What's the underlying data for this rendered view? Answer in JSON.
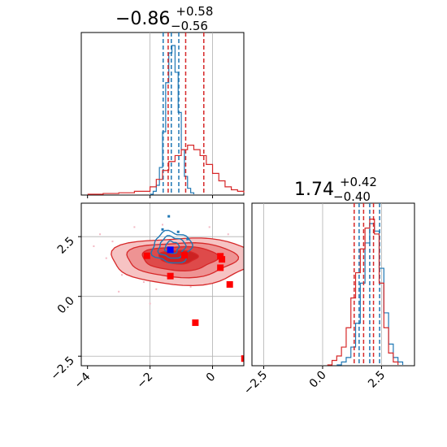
{
  "chart_data": [
    {
      "panel": "hist-x",
      "type": "step-histogram",
      "title": {
        "main": "−0.86",
        "sup": "+0.58",
        "sub": "−0.56"
      },
      "xlim": [
        -4.2,
        1.0
      ],
      "x_tick_labels_shown": false,
      "grid": true,
      "series": [
        {
          "name": "",
          "color": "#1f77b4",
          "style": "step",
          "points": [
            [
              -2.0,
              0
            ],
            [
              -1.9,
              0.02
            ],
            [
              -1.8,
              0.06
            ],
            [
              -1.7,
              0.18
            ],
            [
              -1.6,
              0.42
            ],
            [
              -1.5,
              0.75
            ],
            [
              -1.4,
              0.95
            ],
            [
              -1.3,
              1.0
            ],
            [
              -1.2,
              0.82
            ],
            [
              -1.1,
              0.55
            ],
            [
              -1.0,
              0.3
            ],
            [
              -0.9,
              0.12
            ],
            [
              -0.8,
              0.04
            ],
            [
              -0.7,
              0.01
            ],
            [
              -0.6,
              0
            ]
          ],
          "quantiles": [
            -1.58,
            -1.32,
            -1.08
          ]
        },
        {
          "name": "",
          "color": "#d62728",
          "style": "step",
          "points": [
            [
              -4.0,
              0
            ],
            [
              -3.5,
              0.005
            ],
            [
              -3.0,
              0.01
            ],
            [
              -2.5,
              0.02
            ],
            [
              -2.0,
              0.05
            ],
            [
              -1.8,
              0.1
            ],
            [
              -1.6,
              0.16
            ],
            [
              -1.4,
              0.22
            ],
            [
              -1.2,
              0.26
            ],
            [
              -1.0,
              0.3
            ],
            [
              -0.8,
              0.33
            ],
            [
              -0.6,
              0.3
            ],
            [
              -0.4,
              0.26
            ],
            [
              -0.2,
              0.2
            ],
            [
              0.0,
              0.14
            ],
            [
              0.2,
              0.09
            ],
            [
              0.4,
              0.05
            ],
            [
              0.6,
              0.03
            ],
            [
              0.8,
              0.02
            ],
            [
              1.0,
              0.01
            ]
          ],
          "quantiles": [
            -1.42,
            -0.86,
            -0.28
          ]
        }
      ]
    },
    {
      "panel": "hist-y",
      "type": "step-histogram",
      "title": {
        "main": "1.74",
        "sup": "+0.42",
        "sub": "−0.40"
      },
      "xlim": [
        -3.0,
        3.9
      ],
      "x_ticks": [
        -2.5,
        0.0,
        2.5
      ],
      "x_tick_labels": [
        "−2.5",
        "0.0",
        "2.5"
      ],
      "grid": true,
      "series": [
        {
          "name": "",
          "color": "#1f77b4",
          "style": "step",
          "points": [
            [
              0.6,
              0
            ],
            [
              0.8,
              0.02
            ],
            [
              1.0,
              0.05
            ],
            [
              1.2,
              0.12
            ],
            [
              1.4,
              0.28
            ],
            [
              1.6,
              0.55
            ],
            [
              1.8,
              0.82
            ],
            [
              2.0,
              0.95
            ],
            [
              2.2,
              0.9
            ],
            [
              2.4,
              0.65
            ],
            [
              2.6,
              0.35
            ],
            [
              2.8,
              0.14
            ],
            [
              3.0,
              0.05
            ],
            [
              3.2,
              0.02
            ],
            [
              3.4,
              0
            ]
          ],
          "quantiles": [
            1.55,
            2.0,
            2.42
          ]
        },
        {
          "name": "",
          "color": "#d62728",
          "style": "step",
          "points": [
            [
              0.2,
              0
            ],
            [
              0.4,
              0.03
            ],
            [
              0.6,
              0.06
            ],
            [
              0.8,
              0.12
            ],
            [
              1.0,
              0.25
            ],
            [
              1.2,
              0.45
            ],
            [
              1.4,
              0.62
            ],
            [
              1.6,
              0.78
            ],
            [
              1.8,
              0.92
            ],
            [
              2.0,
              0.98
            ],
            [
              2.2,
              0.88
            ],
            [
              2.4,
              0.55
            ],
            [
              2.6,
              0.25
            ],
            [
              2.8,
              0.08
            ],
            [
              3.0,
              0.02
            ],
            [
              3.2,
              0
            ]
          ],
          "quantiles": [
            1.34,
            1.74,
            2.16
          ]
        }
      ]
    },
    {
      "panel": "corner-2d",
      "type": "contour-scatter",
      "xlim": [
        -4.2,
        1.0
      ],
      "ylim": [
        -2.9,
        3.9
      ],
      "x_ticks": [
        -4,
        -2,
        0
      ],
      "x_tick_labels": [
        "−4",
        "−2",
        "0"
      ],
      "y_ticks": [
        -2.5,
        0.0,
        2.5
      ],
      "y_tick_labels": [
        "−2.5",
        "0.0",
        "2.5"
      ],
      "grid": true,
      "red_contours": [
        {
          "cx": -0.95,
          "cy": 1.5,
          "rx": 2.3,
          "ry": 0.98,
          "fill": "#f6c3c3",
          "stroke": "#d62728"
        },
        {
          "cx": -1.0,
          "cy": 1.55,
          "rx": 1.75,
          "ry": 0.72,
          "fill": "#ee9393",
          "stroke": "#d62728"
        },
        {
          "cx": -1.05,
          "cy": 1.6,
          "rx": 1.2,
          "ry": 0.5,
          "fill": "#de4a4a",
          "stroke": "#d62728"
        },
        {
          "cx": -1.1,
          "cy": 1.65,
          "rx": 0.62,
          "ry": 0.28,
          "fill": "#cc2222",
          "stroke": "#d62728"
        }
      ],
      "blue_contours": [
        {
          "cx": -1.3,
          "cy": 2.05,
          "rx": 0.62,
          "ry": 0.65,
          "stroke": "#1f77b4"
        },
        {
          "cx": -1.3,
          "cy": 2.05,
          "rx": 0.42,
          "ry": 0.45,
          "stroke": "#1f77b4"
        },
        {
          "cx": -1.3,
          "cy": 2.05,
          "rx": 0.22,
          "ry": 0.25,
          "stroke": "#1f77b4"
        }
      ],
      "red_points": [
        [
          -2.1,
          1.7
        ],
        [
          -1.35,
          0.85
        ],
        [
          -0.9,
          1.72
        ],
        [
          0.25,
          1.68
        ],
        [
          0.3,
          1.55
        ],
        [
          0.25,
          1.2
        ],
        [
          0.55,
          0.5
        ],
        [
          -0.55,
          -1.1
        ],
        [
          1.02,
          -2.6
        ]
      ],
      "blue_points": [
        [
          -1.35,
          1.95
        ]
      ],
      "pink_scatter": [
        [
          -3.2,
          2.3
        ],
        [
          -2.8,
          1.2
        ],
        [
          -2.5,
          2.9
        ],
        [
          -3.4,
          1.6
        ],
        [
          -2.9,
          0.9
        ],
        [
          -2.2,
          0.6
        ],
        [
          -1.8,
          0.3
        ],
        [
          -3.6,
          2.6
        ],
        [
          -2.4,
          2.0
        ],
        [
          -1.6,
          3.0
        ],
        [
          -0.3,
          0.9
        ],
        [
          0.1,
          0.6
        ],
        [
          -0.7,
          0.4
        ],
        [
          -3.0,
          0.2
        ],
        [
          -2.0,
          -0.3
        ],
        [
          0.6,
          1.0
        ],
        [
          -3.8,
          2.1
        ],
        [
          -2.6,
          1.5
        ],
        [
          -0.1,
          2.9
        ],
        [
          0.5,
          2.6
        ]
      ],
      "blue_scatter": [
        [
          -1.4,
          3.35
        ],
        [
          -1.6,
          2.8
        ],
        [
          -1.1,
          2.7
        ],
        [
          -0.8,
          2.4
        ]
      ]
    }
  ]
}
